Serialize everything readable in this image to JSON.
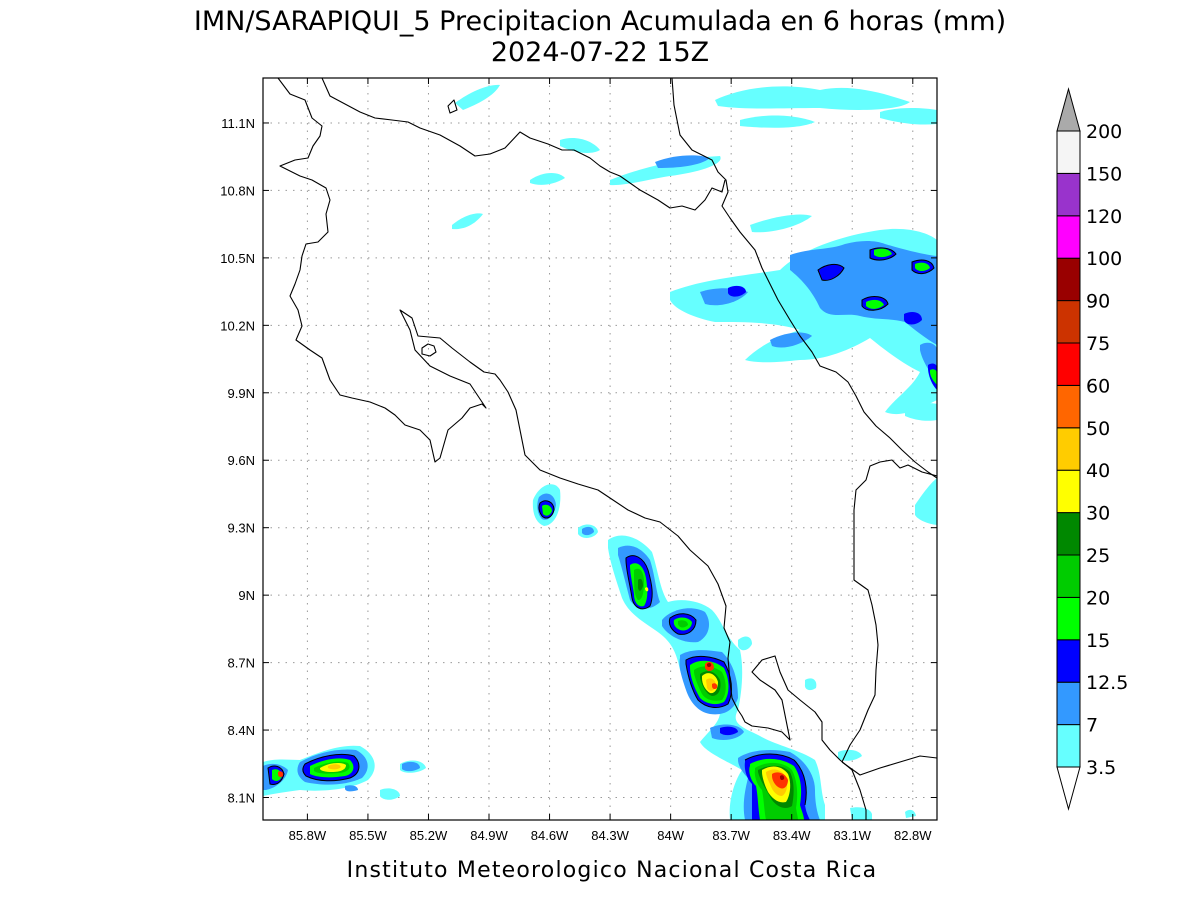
{
  "title": {
    "line1": "IMN/SARAPIQUI_5 Precipitacion Acumulada en 6 horas (mm)",
    "line2": "2024-07-22 15Z"
  },
  "footer": "Instituto Meteorologico Nacional Costa Rica",
  "map": {
    "lon_range": [
      -86.02,
      -82.68
    ],
    "lat_range": [
      8.0,
      11.3
    ],
    "lon_ticks": [
      {
        "value": -85.8,
        "label": "85.8W"
      },
      {
        "value": -85.5,
        "label": "85.5W"
      },
      {
        "value": -85.2,
        "label": "85.2W"
      },
      {
        "value": -84.9,
        "label": "84.9W"
      },
      {
        "value": -84.6,
        "label": "84.6W"
      },
      {
        "value": -84.3,
        "label": "84.3W"
      },
      {
        "value": -84.0,
        "label": "84W"
      },
      {
        "value": -83.7,
        "label": "83.7W"
      },
      {
        "value": -83.4,
        "label": "83.4W"
      },
      {
        "value": -83.1,
        "label": "83.1W"
      },
      {
        "value": -82.8,
        "label": "82.8W"
      }
    ],
    "lat_ticks": [
      {
        "value": 8.1,
        "label": "8.1N"
      },
      {
        "value": 8.4,
        "label": "8.4N"
      },
      {
        "value": 8.7,
        "label": "8.7N"
      },
      {
        "value": 9.0,
        "label": "9N"
      },
      {
        "value": 9.3,
        "label": "9.3N"
      },
      {
        "value": 9.6,
        "label": "9.6N"
      },
      {
        "value": 9.9,
        "label": "9.9N"
      },
      {
        "value": 10.2,
        "label": "10.2N"
      },
      {
        "value": 10.5,
        "label": "10.5N"
      },
      {
        "value": 10.8,
        "label": "10.8N"
      },
      {
        "value": 11.1,
        "label": "11.1N"
      }
    ]
  },
  "colorbar": {
    "levels": [
      {
        "label": "3.5",
        "color": "#66ffff"
      },
      {
        "label": "7",
        "color": "#3399ff"
      },
      {
        "label": "12.5",
        "color": "#0000ff"
      },
      {
        "label": "15",
        "color": "#00ff00"
      },
      {
        "label": "20",
        "color": "#00cc00"
      },
      {
        "label": "25",
        "color": "#008800"
      },
      {
        "label": "30",
        "color": "#ffff00"
      },
      {
        "label": "40",
        "color": "#ffcc00"
      },
      {
        "label": "50",
        "color": "#ff6600"
      },
      {
        "label": "60",
        "color": "#ff0000"
      },
      {
        "label": "75",
        "color": "#cc3300"
      },
      {
        "label": "90",
        "color": "#990000"
      },
      {
        "label": "100",
        "color": "#ff00ff"
      },
      {
        "label": "120",
        "color": "#9933cc"
      },
      {
        "label": "150",
        "color": "#f5f5f5"
      },
      {
        "label": "200",
        "color": "#aaaaaa"
      }
    ]
  }
}
